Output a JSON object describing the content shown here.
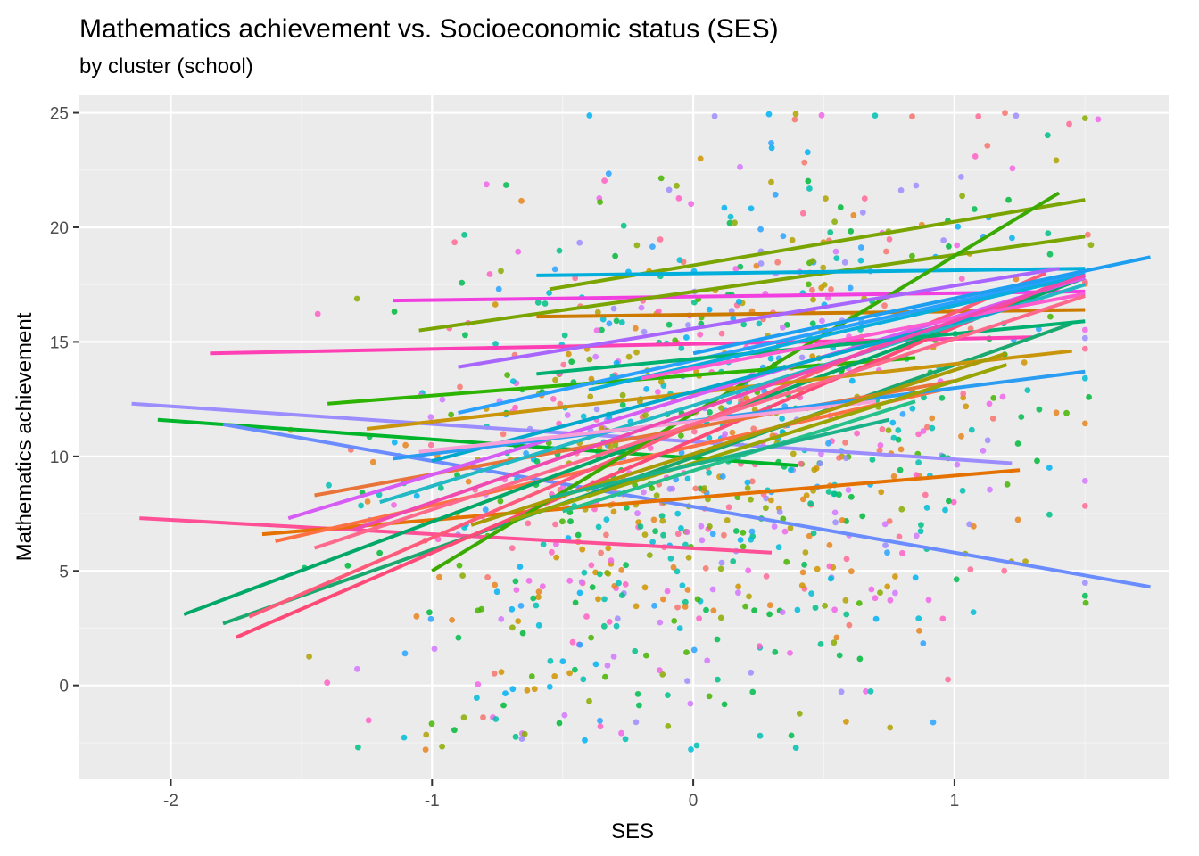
{
  "chart_data": {
    "type": "scatter",
    "title": "Mathematics achievement vs. Socioeconomic status (SES)",
    "subtitle": "by cluster (school)",
    "xlabel": "SES",
    "ylabel": "Mathematics achievement",
    "xlim": [
      -2.35,
      1.82
    ],
    "ylim": [
      -4.1,
      25.8
    ],
    "x_ticks": [
      -2,
      -1,
      0,
      1
    ],
    "x_tick_labels": [
      "-2",
      "-1",
      "0",
      "1"
    ],
    "y_ticks": [
      0,
      5,
      10,
      15,
      20,
      25
    ],
    "y_tick_labels": [
      "0",
      "5",
      "10",
      "15",
      "20",
      "25"
    ],
    "grid": true,
    "legend": "none",
    "colors": {
      "panel_background": "#ebebeb",
      "grid_major": "#ffffff",
      "grid_minor": "#f4f4f4",
      "series_palette": [
        "#f8766d",
        "#e7851e",
        "#d09400",
        "#b2a100",
        "#89ac00",
        "#45b500",
        "#00bc51",
        "#00c087",
        "#00c0b2",
        "#00bcd6",
        "#00b3f2",
        "#29a3ff",
        "#9c8dff",
        "#d277ff",
        "#f166e8",
        "#ff61c7",
        "#ff6b95",
        "#00ba38"
      ]
    },
    "fit_lines": [
      {
        "x": [
          -2.15,
          1.22
        ],
        "y": [
          12.3,
          9.7
        ],
        "color": "#9c8dff"
      },
      {
        "x": [
          -2.05,
          0.4
        ],
        "y": [
          11.6,
          9.6
        ],
        "color": "#00b52a"
      },
      {
        "x": [
          -1.8,
          1.75
        ],
        "y": [
          11.4,
          4.3
        ],
        "color": "#6b8cff"
      },
      {
        "x": [
          -2.12,
          0.3
        ],
        "y": [
          7.3,
          5.8
        ],
        "color": "#ff4f96"
      },
      {
        "x": [
          -1.85,
          1.3
        ],
        "y": [
          14.5,
          15.2
        ],
        "color": "#ff3fb4"
      },
      {
        "x": [
          -1.15,
          1.5
        ],
        "y": [
          16.8,
          17.2
        ],
        "color": "#f23fe0"
      },
      {
        "x": [
          -1.4,
          0.85
        ],
        "y": [
          12.3,
          14.3
        ],
        "color": "#2cb400"
      },
      {
        "x": [
          -1.05,
          1.5
        ],
        "y": [
          15.5,
          19.6
        ],
        "color": "#7aa400"
      },
      {
        "x": [
          -0.55,
          1.5
        ],
        "y": [
          17.3,
          21.2
        ],
        "color": "#7aa400"
      },
      {
        "x": [
          -0.6,
          1.5
        ],
        "y": [
          17.9,
          18.2
        ],
        "color": "#00aedb"
      },
      {
        "x": [
          -0.6,
          1.5
        ],
        "y": [
          16.1,
          16.4
        ],
        "color": "#cc7a00"
      },
      {
        "x": [
          -1.65,
          1.25
        ],
        "y": [
          6.6,
          9.4
        ],
        "color": "#e57200"
      },
      {
        "x": [
          -1.6,
          0.95
        ],
        "y": [
          6.3,
          12.9
        ],
        "color": "#ff7044"
      },
      {
        "x": [
          -1.95,
          1.5
        ],
        "y": [
          3.1,
          17.8
        ],
        "color": "#00a868"
      },
      {
        "x": [
          -1.8,
          1.45
        ],
        "y": [
          2.7,
          15.8
        ],
        "color": "#1aa86e"
      },
      {
        "x": [
          -1.75,
          1.4
        ],
        "y": [
          2.1,
          17.6
        ],
        "color": "#ff4a78"
      },
      {
        "x": [
          -1.7,
          1.35
        ],
        "y": [
          3.0,
          18.0
        ],
        "color": "#ff5a7a"
      },
      {
        "x": [
          -1.0,
          1.4
        ],
        "y": [
          5.0,
          21.5
        ],
        "color": "#3aaa00"
      },
      {
        "x": [
          -1.25,
          1.45
        ],
        "y": [
          11.2,
          14.6
        ],
        "color": "#c8950c"
      },
      {
        "x": [
          -1.45,
          1.0
        ],
        "y": [
          8.3,
          13.3
        ],
        "color": "#e8743a"
      },
      {
        "x": [
          -1.2,
          1.5
        ],
        "y": [
          8.0,
          17.5
        ],
        "color": "#22b8c4"
      },
      {
        "x": [
          -0.9,
          1.5
        ],
        "y": [
          11.9,
          18.0
        ],
        "color": "#2aa0ff"
      },
      {
        "x": [
          -0.9,
          1.4
        ],
        "y": [
          13.9,
          18.2
        ],
        "color": "#a866ff"
      },
      {
        "x": [
          -1.55,
          1.5
        ],
        "y": [
          7.3,
          17.8
        ],
        "color": "#d65cf5"
      },
      {
        "x": [
          -0.6,
          1.5
        ],
        "y": [
          13.6,
          15.9
        ],
        "color": "#00b070"
      },
      {
        "x": [
          -1.0,
          1.25
        ],
        "y": [
          9.8,
          16.6
        ],
        "color": "#00a8cc"
      },
      {
        "x": [
          -1.15,
          1.5
        ],
        "y": [
          9.9,
          13.7
        ],
        "color": "#2a9df2"
      },
      {
        "x": [
          -1.05,
          0.7
        ],
        "y": [
          10.2,
          12.4
        ],
        "color": "#f7a0d8"
      },
      {
        "x": [
          -0.85,
          1.2
        ],
        "y": [
          7.0,
          14.5
        ],
        "color": "#a89a00"
      },
      {
        "x": [
          -0.7,
          1.2
        ],
        "y": [
          7.2,
          14.0
        ],
        "color": "#98a400"
      },
      {
        "x": [
          -0.5,
          0.85
        ],
        "y": [
          7.6,
          12.4
        ],
        "color": "#26c08a"
      },
      {
        "x": [
          -0.55,
          0.75
        ],
        "y": [
          8.2,
          11.6
        ],
        "color": "#1bb28a"
      },
      {
        "x": [
          -0.4,
          1.5
        ],
        "y": [
          12.9,
          17.9
        ],
        "color": "#0aaede"
      },
      {
        "x": [
          -0.2,
          1.5
        ],
        "y": [
          13.4,
          17.1
        ],
        "color": "#ff5ccf"
      },
      {
        "x": [
          -1.45,
          1.5
        ],
        "y": [
          6.0,
          17.0
        ],
        "color": "#ff6a8c"
      },
      {
        "x": [
          0.0,
          1.75
        ],
        "y": [
          14.5,
          18.7
        ],
        "color": "#1e9ef0"
      },
      {
        "x": [
          -1.3,
          1.5
        ],
        "y": [
          6.8,
          17.9
        ],
        "color": "#f04ab0"
      }
    ],
    "points_note": "approximately 1000 individual student observations scattered over SES [-2.1, 1.7] and math achievement [-2.8, 25], colored by school"
  }
}
